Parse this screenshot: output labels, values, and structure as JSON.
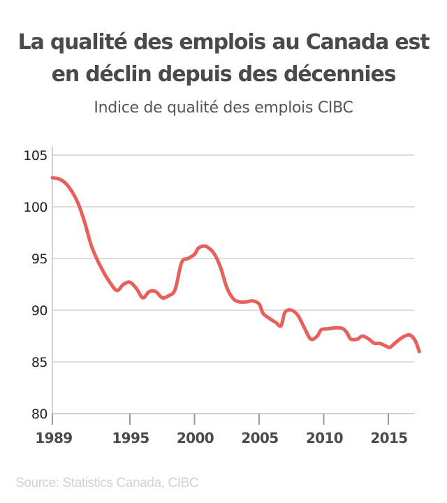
{
  "chart_data": {
    "type": "line",
    "title": "La qualité des emplois au Canada est en déclin depuis des décennies",
    "subtitle": "Indice de qualité des emplois CIBC",
    "xlabel": "",
    "ylabel": "",
    "xlim": [
      1989,
      2017
    ],
    "ylim": [
      80,
      105
    ],
    "x_ticks": [
      "1989",
      "1995",
      "2000",
      "2005",
      "2010",
      "2015"
    ],
    "y_ticks": [
      "105",
      "100",
      "95",
      "90",
      "85",
      "80"
    ],
    "grid": true,
    "legend": "none",
    "series": [
      {
        "color": "#e8605a",
        "points": [
          [
            1989.0,
            102.8
          ],
          [
            1989.5,
            102.7
          ],
          [
            1990.0,
            102.3
          ],
          [
            1990.5,
            101.5
          ],
          [
            1991.0,
            100.3
          ],
          [
            1991.5,
            98.5
          ],
          [
            1992.0,
            96.3
          ],
          [
            1992.5,
            94.8
          ],
          [
            1993.0,
            93.6
          ],
          [
            1993.5,
            92.6
          ],
          [
            1994.0,
            91.9
          ],
          [
            1994.5,
            92.5
          ],
          [
            1995.0,
            92.7
          ],
          [
            1995.5,
            92.1
          ],
          [
            1996.0,
            91.2
          ],
          [
            1996.5,
            91.8
          ],
          [
            1997.0,
            91.8
          ],
          [
            1997.5,
            91.2
          ],
          [
            1998.0,
            91.4
          ],
          [
            1998.5,
            92.0
          ],
          [
            1999.0,
            94.6
          ],
          [
            1999.5,
            95.0
          ],
          [
            2000.0,
            95.4
          ],
          [
            2000.3,
            96.0
          ],
          [
            2000.7,
            96.2
          ],
          [
            2001.0,
            96.1
          ],
          [
            2001.5,
            95.5
          ],
          [
            2002.0,
            94.2
          ],
          [
            2002.5,
            92.2
          ],
          [
            2003.0,
            91.1
          ],
          [
            2003.5,
            90.8
          ],
          [
            2004.0,
            90.8
          ],
          [
            2004.5,
            90.9
          ],
          [
            2005.0,
            90.6
          ],
          [
            2005.3,
            89.7
          ],
          [
            2005.8,
            89.2
          ],
          [
            2006.3,
            88.8
          ],
          [
            2006.7,
            88.5
          ],
          [
            2007.0,
            89.8
          ],
          [
            2007.5,
            90.0
          ],
          [
            2008.0,
            89.5
          ],
          [
            2008.5,
            88.3
          ],
          [
            2009.0,
            87.2
          ],
          [
            2009.5,
            87.5
          ],
          [
            2009.8,
            88.1
          ],
          [
            2010.3,
            88.2
          ],
          [
            2011.0,
            88.3
          ],
          [
            2011.5,
            88.2
          ],
          [
            2011.8,
            87.8
          ],
          [
            2012.1,
            87.2
          ],
          [
            2012.6,
            87.2
          ],
          [
            2013.0,
            87.5
          ],
          [
            2013.5,
            87.2
          ],
          [
            2013.9,
            86.8
          ],
          [
            2014.3,
            86.8
          ],
          [
            2014.7,
            86.6
          ],
          [
            2015.1,
            86.4
          ],
          [
            2015.5,
            86.8
          ],
          [
            2016.0,
            87.3
          ],
          [
            2016.5,
            87.6
          ],
          [
            2016.8,
            87.5
          ],
          [
            2017.1,
            87.0
          ],
          [
            2017.4,
            86.0
          ]
        ]
      }
    ]
  },
  "title_lines": [
    "La qualité des emplois au Canada est",
    "en déclin depuis des décennies"
  ],
  "subtitle": "Indice de qualité des emplois CIBC",
  "source": "Source: Statistics Canada, CIBC"
}
